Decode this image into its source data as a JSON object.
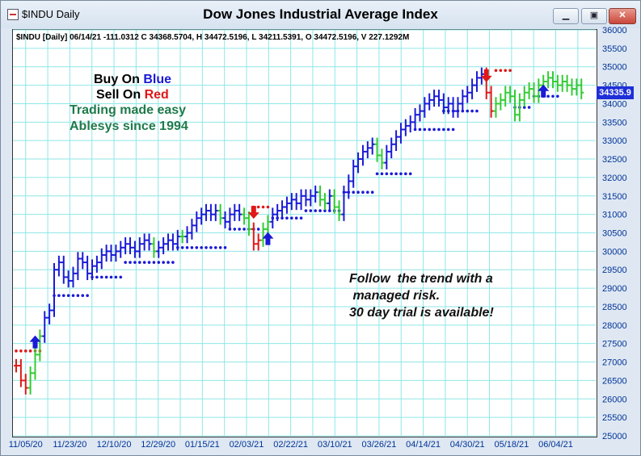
{
  "window": {
    "app_title": "$INDU Daily",
    "chart_title": "Dow Jones Industrial Average Index",
    "buttons": {
      "minimize": "▁",
      "restore": "▣",
      "close": "✕"
    }
  },
  "info_line": "$INDU [Daily] 06/14/21  -111.0312 C 34368.5704, H 34472.5196, L 34211.5391, O 34472.5196, V 227.1292M",
  "promo": {
    "buy_prefix": "Buy On ",
    "buy_word": "Blue",
    "sell_prefix": "Sell On ",
    "sell_word": "Red",
    "line3": "Trading made easy",
    "line4": "Ablesys since 1994",
    "follow": "Follow  the trend with a\n managed risk.\n30 day trial is available!"
  },
  "colors": {
    "blue": "#1a1ad6",
    "green": "#33cc33",
    "red": "#e01818",
    "grid": "#8fe6e6",
    "dark_green": "#1e7a4a",
    "axis_text": "#003399"
  },
  "last_price_label": "34335.9",
  "chart_data": {
    "type": "line",
    "title": "Dow Jones Industrial Average Index",
    "ylim": [
      25000,
      36000
    ],
    "y_ticks": [
      "25000",
      "25500",
      "26000",
      "26500",
      "27000",
      "27500",
      "28000",
      "28500",
      "29000",
      "29500",
      "30000",
      "30500",
      "31000",
      "31500",
      "32000",
      "32500",
      "33000",
      "33500",
      "34000",
      "34500",
      "35000",
      "35500",
      "36000"
    ],
    "x_ticks": [
      "11/05/20",
      "11/23/20",
      "12/10/20",
      "12/29/20",
      "01/15/21",
      "02/03/21",
      "02/22/21",
      "03/10/21",
      "03/26/21",
      "04/14/21",
      "04/30/21",
      "05/18/21",
      "06/04/21"
    ],
    "grid": true,
    "series": [
      {
        "color": "multi",
        "points": [
          [
            0,
            26900,
            "r"
          ],
          [
            1,
            26500,
            "r"
          ],
          [
            2,
            26300,
            "r"
          ],
          [
            3,
            26700,
            "g"
          ],
          [
            4,
            27200,
            "g"
          ],
          [
            5,
            27700,
            "g"
          ],
          [
            6,
            28200,
            "b"
          ],
          [
            7,
            28400,
            "b"
          ],
          [
            8,
            29500,
            "b"
          ],
          [
            9,
            29700,
            "b"
          ],
          [
            10,
            29300,
            "b"
          ],
          [
            11,
            29200,
            "b"
          ],
          [
            12,
            29400,
            "b"
          ],
          [
            13,
            29800,
            "b"
          ],
          [
            14,
            29700,
            "b"
          ],
          [
            15,
            29400,
            "b"
          ],
          [
            16,
            29600,
            "b"
          ],
          [
            17,
            29700,
            "b"
          ],
          [
            18,
            29900,
            "b"
          ],
          [
            19,
            30000,
            "b"
          ],
          [
            20,
            29900,
            "b"
          ],
          [
            21,
            30000,
            "b"
          ],
          [
            22,
            30100,
            "b"
          ],
          [
            23,
            30200,
            "b"
          ],
          [
            24,
            30100,
            "b"
          ],
          [
            25,
            30000,
            "b"
          ],
          [
            26,
            30200,
            "b"
          ],
          [
            27,
            30300,
            "b"
          ],
          [
            28,
            30200,
            "b"
          ],
          [
            29,
            30000,
            "g"
          ],
          [
            30,
            30100,
            "b"
          ],
          [
            31,
            30200,
            "b"
          ],
          [
            32,
            30300,
            "b"
          ],
          [
            33,
            30200,
            "b"
          ],
          [
            34,
            30400,
            "b"
          ],
          [
            35,
            30400,
            "g"
          ],
          [
            36,
            30500,
            "b"
          ],
          [
            37,
            30700,
            "b"
          ],
          [
            38,
            30900,
            "b"
          ],
          [
            39,
            31000,
            "b"
          ],
          [
            40,
            31100,
            "b"
          ],
          [
            41,
            31000,
            "b"
          ],
          [
            42,
            31100,
            "b"
          ],
          [
            43,
            30900,
            "g"
          ],
          [
            44,
            30800,
            "b"
          ],
          [
            45,
            31000,
            "b"
          ],
          [
            46,
            31100,
            "b"
          ],
          [
            47,
            31000,
            "b"
          ],
          [
            48,
            30900,
            "g"
          ],
          [
            49,
            30600,
            "g"
          ],
          [
            50,
            30200,
            "r"
          ],
          [
            51,
            30300,
            "r"
          ],
          [
            52,
            30600,
            "g"
          ],
          [
            53,
            30800,
            "g"
          ],
          [
            54,
            31000,
            "b"
          ],
          [
            55,
            31100,
            "b"
          ],
          [
            56,
            31200,
            "b"
          ],
          [
            57,
            31300,
            "b"
          ],
          [
            58,
            31400,
            "b"
          ],
          [
            59,
            31300,
            "b"
          ],
          [
            60,
            31500,
            "b"
          ],
          [
            61,
            31400,
            "b"
          ],
          [
            62,
            31500,
            "b"
          ],
          [
            63,
            31600,
            "b"
          ],
          [
            64,
            31400,
            "g"
          ],
          [
            65,
            31300,
            "g"
          ],
          [
            66,
            31500,
            "b"
          ],
          [
            67,
            31200,
            "g"
          ],
          [
            68,
            31000,
            "g"
          ],
          [
            69,
            31600,
            "b"
          ],
          [
            70,
            31900,
            "b"
          ],
          [
            71,
            32300,
            "b"
          ],
          [
            72,
            32500,
            "b"
          ],
          [
            73,
            32700,
            "b"
          ],
          [
            74,
            32800,
            "b"
          ],
          [
            75,
            32900,
            "b"
          ],
          [
            76,
            32600,
            "g"
          ],
          [
            77,
            32400,
            "g"
          ],
          [
            78,
            32700,
            "b"
          ],
          [
            79,
            32900,
            "b"
          ],
          [
            80,
            33100,
            "b"
          ],
          [
            81,
            33300,
            "b"
          ],
          [
            82,
            33400,
            "b"
          ],
          [
            83,
            33500,
            "b"
          ],
          [
            84,
            33700,
            "b"
          ],
          [
            85,
            33800,
            "b"
          ],
          [
            86,
            34000,
            "b"
          ],
          [
            87,
            34100,
            "b"
          ],
          [
            88,
            34200,
            "b"
          ],
          [
            89,
            34100,
            "b"
          ],
          [
            90,
            33900,
            "b"
          ],
          [
            91,
            34000,
            "b"
          ],
          [
            92,
            33800,
            "b"
          ],
          [
            93,
            34000,
            "b"
          ],
          [
            94,
            34200,
            "b"
          ],
          [
            95,
            34300,
            "b"
          ],
          [
            96,
            34500,
            "b"
          ],
          [
            97,
            34700,
            "b"
          ],
          [
            98,
            34800,
            "b"
          ],
          [
            99,
            34300,
            "r"
          ],
          [
            100,
            33800,
            "r"
          ],
          [
            101,
            34000,
            "g"
          ],
          [
            102,
            34100,
            "g"
          ],
          [
            103,
            34300,
            "g"
          ],
          [
            104,
            34200,
            "g"
          ],
          [
            105,
            33700,
            "g"
          ],
          [
            106,
            34100,
            "g"
          ],
          [
            107,
            34300,
            "g"
          ],
          [
            108,
            34400,
            "g"
          ],
          [
            109,
            34200,
            "g"
          ],
          [
            110,
            34500,
            "g"
          ],
          [
            111,
            34600,
            "g"
          ],
          [
            112,
            34700,
            "g"
          ],
          [
            113,
            34600,
            "g"
          ],
          [
            114,
            34500,
            "g"
          ],
          [
            115,
            34600,
            "g"
          ],
          [
            116,
            34500,
            "g"
          ],
          [
            117,
            34400,
            "g"
          ],
          [
            118,
            34500,
            "g"
          ],
          [
            119,
            34300,
            "g"
          ]
        ]
      }
    ],
    "stop_segments": [
      {
        "x0": 0,
        "x1": 5,
        "y": 27300,
        "c": "r"
      },
      {
        "x0": 8,
        "x1": 15,
        "y": 28800,
        "c": "b"
      },
      {
        "x0": 16,
        "x1": 22,
        "y": 29300,
        "c": "b"
      },
      {
        "x0": 23,
        "x1": 33,
        "y": 29700,
        "c": "b"
      },
      {
        "x0": 34,
        "x1": 44,
        "y": 30100,
        "c": "b"
      },
      {
        "x0": 45,
        "x1": 51,
        "y": 30600,
        "c": "b"
      },
      {
        "x0": 50,
        "x1": 53,
        "y": 31200,
        "c": "r"
      },
      {
        "x0": 54,
        "x1": 60,
        "y": 30900,
        "c": "b"
      },
      {
        "x0": 61,
        "x1": 68,
        "y": 31100,
        "c": "b"
      },
      {
        "x0": 69,
        "x1": 75,
        "y": 31600,
        "c": "b"
      },
      {
        "x0": 76,
        "x1": 83,
        "y": 32100,
        "c": "b"
      },
      {
        "x0": 84,
        "x1": 92,
        "y": 33300,
        "c": "b"
      },
      {
        "x0": 90,
        "x1": 97,
        "y": 33800,
        "c": "b"
      },
      {
        "x0": 101,
        "x1": 104,
        "y": 34900,
        "c": "r"
      },
      {
        "x0": 105,
        "x1": 108,
        "y": 33900,
        "c": "b"
      },
      {
        "x0": 109,
        "x1": 114,
        "y": 34200,
        "c": "b"
      }
    ],
    "signals": [
      {
        "x": 4,
        "y": 27500,
        "dir": "up",
        "c": "b"
      },
      {
        "x": 50,
        "y": 31100,
        "dir": "down",
        "c": "r"
      },
      {
        "x": 53,
        "y": 30300,
        "dir": "up",
        "c": "b"
      },
      {
        "x": 99,
        "y": 34800,
        "dir": "down",
        "c": "r"
      },
      {
        "x": 111,
        "y": 34300,
        "dir": "up",
        "c": "b"
      }
    ]
  }
}
